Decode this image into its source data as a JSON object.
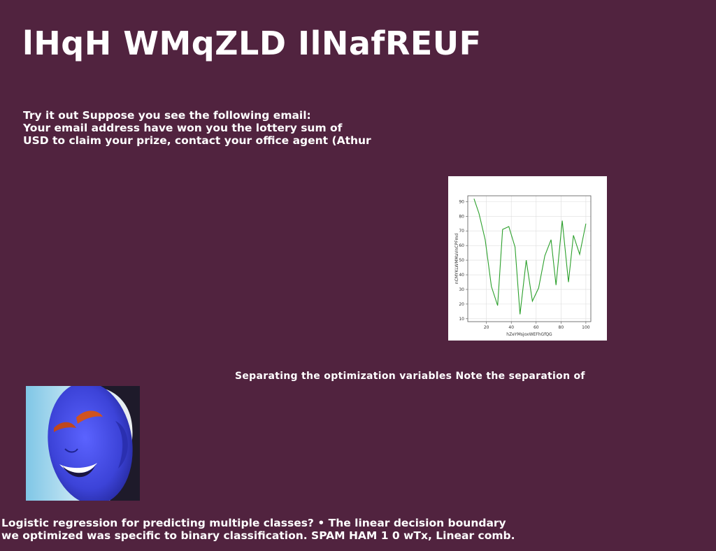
{
  "title": "lHqH WMqZLD IlNafREUF",
  "intro": {
    "lines": [
      "Try it out Suppose you see the following email:",
      "Your email address have won you the lottery sum of",
      "USD to claim your prize, contact your office agent (Athur"
    ]
  },
  "caption": "Separating the optimization variables Note the separation of",
  "bottom": {
    "lines": [
      "Logistic regression for predicting multiple classes? • The linear decision boundary",
      "we optimized was specific to binary classification. SPAM HAM 1 0 wTx, Linear comb."
    ]
  },
  "colors": {
    "background": "#51233f",
    "text": "#ffffff",
    "line": "#2ca02c"
  },
  "chart_data": {
    "type": "line",
    "xlabel": "hZeYMsjoxWEFhGfQG",
    "ylabel": "nCMYKLWMMaVnCPFmd",
    "xlim": [
      5,
      104
    ],
    "ylim": [
      8,
      94
    ],
    "xticks": [
      20,
      40,
      60,
      80,
      100
    ],
    "yticks": [
      10,
      20,
      30,
      40,
      50,
      60,
      70,
      80,
      90
    ],
    "grid": true,
    "x": [
      10,
      14,
      19,
      24,
      29,
      33,
      38,
      43,
      47,
      52,
      57,
      62,
      67,
      72,
      76,
      81,
      86,
      90,
      95,
      100
    ],
    "y": [
      92,
      82,
      64,
      32,
      19,
      71,
      73,
      59,
      13,
      50,
      22,
      31,
      53,
      64,
      33,
      77,
      35,
      67,
      54,
      75
    ]
  }
}
